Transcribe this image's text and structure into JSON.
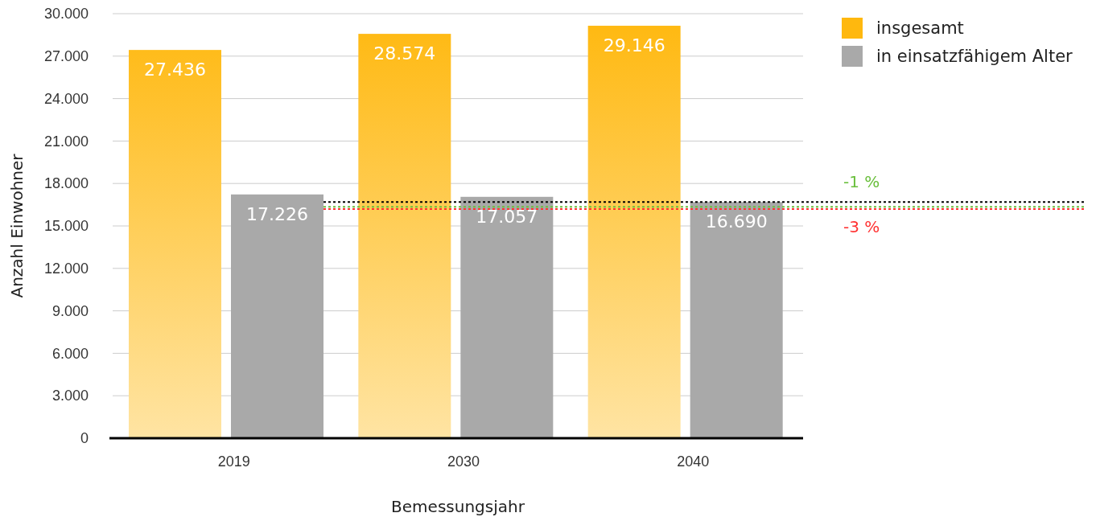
{
  "chart_data": {
    "type": "bar",
    "xlabel": "Bemessungsjahr",
    "ylabel": "Anzahl Einwohner",
    "categories": [
      "2019",
      "2030",
      "2040"
    ],
    "series": [
      {
        "name": "insgesamt",
        "color": "#ffb80e",
        "values": [
          27436,
          28574,
          29146
        ]
      },
      {
        "name": "in einsatzfähigem Alter",
        "color": "#a9a9a9",
        "values": [
          17226,
          17057,
          16690
        ]
      }
    ],
    "value_labels": [
      [
        "27.436",
        "28.574",
        "29.146"
      ],
      [
        "17.226",
        "17.057",
        "16.690"
      ]
    ],
    "ylim": [
      0,
      30000
    ],
    "yticks": [
      {
        "value": 0,
        "label": "0"
      },
      {
        "value": 3000,
        "label": "3.000"
      },
      {
        "value": 6000,
        "label": "6.000"
      },
      {
        "value": 9000,
        "label": "9.000"
      },
      {
        "value": 12000,
        "label": "12.000"
      },
      {
        "value": 15000,
        "label": "15.000"
      },
      {
        "value": 18000,
        "label": "18.000"
      },
      {
        "value": 21000,
        "label": "21.000"
      },
      {
        "value": 24000,
        "label": "24.000"
      },
      {
        "value": 27000,
        "label": "27.000"
      },
      {
        "value": 30000,
        "label": "30.000"
      }
    ],
    "grid": "y",
    "legend": "top right",
    "ref_lines": [
      {
        "axis": "y",
        "value": 16690,
        "color": "#000000",
        "line_style": "dotted"
      },
      {
        "axis": "y",
        "value": 16350,
        "color": "#6abf3c",
        "line_style": "dotted"
      },
      {
        "axis": "y",
        "value": 16200,
        "color": "#ff3333",
        "line_style": "dotted"
      }
    ],
    "annotations": [
      "-1 %",
      "-3 %"
    ]
  }
}
